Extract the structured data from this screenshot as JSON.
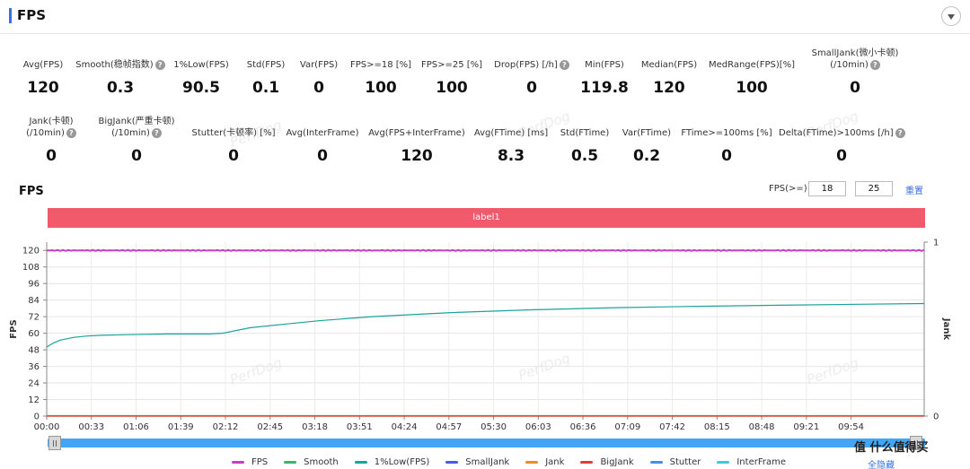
{
  "header": {
    "title": "FPS"
  },
  "metrics_row1": [
    {
      "label": "Avg(FPS)",
      "value": "120",
      "help": false
    },
    {
      "label": "Smooth(稳帧指数)",
      "value": "0.3",
      "help": true
    },
    {
      "label": "1%Low(FPS)",
      "value": "90.5",
      "help": false
    },
    {
      "label": "Std(FPS)",
      "value": "0.1",
      "help": false
    },
    {
      "label": "Var(FPS)",
      "value": "0",
      "help": false
    },
    {
      "label": "FPS>=18 [%]",
      "value": "100",
      "help": false
    },
    {
      "label": "FPS>=25 [%]",
      "value": "100",
      "help": false
    },
    {
      "label": "Drop(FPS) [/h]",
      "value": "0",
      "help": true
    },
    {
      "label": "Min(FPS)",
      "value": "119.8",
      "help": false
    },
    {
      "label": "Median(FPS)",
      "value": "120",
      "help": false
    },
    {
      "label": "MedRange(FPS)[%]",
      "value": "100",
      "help": false
    },
    {
      "label": "SmallJank(微小卡顿)",
      "label2": "(/10min)",
      "value": "0",
      "help": true
    }
  ],
  "metrics_row2": [
    {
      "label": "Jank(卡顿)",
      "label2": "(/10min)",
      "value": "0",
      "help": true
    },
    {
      "label": "BigJank(严重卡顿)",
      "label2": "(/10min)",
      "value": "0",
      "help": true
    },
    {
      "label": "Stutter(卡顿率) [%]",
      "value": "0",
      "help": false
    },
    {
      "label": "Avg(InterFrame)",
      "value": "0",
      "help": false
    },
    {
      "label": "Avg(FPS+InterFrame)",
      "value": "120",
      "help": false
    },
    {
      "label": "Avg(FTime) [ms]",
      "value": "8.3",
      "help": false
    },
    {
      "label": "Std(FTime)",
      "value": "0.5",
      "help": false
    },
    {
      "label": "Var(FTime)",
      "value": "0.2",
      "help": false
    },
    {
      "label": "FTime>=100ms [%]",
      "value": "0",
      "help": false
    },
    {
      "label": "Delta(FTime)>100ms [/h]",
      "value": "0",
      "help": true
    }
  ],
  "watermark_text": "PerfDog",
  "chart_section": {
    "title": "FPS",
    "filter_label": "FPS(>=)",
    "filter_value_1": "18",
    "filter_value_2": "25",
    "reset_label": "重置",
    "marker_label": "label1",
    "hide_all_label": "全隐藏",
    "brand_label": "值 什么值得买"
  },
  "chart_data": {
    "type": "line",
    "ylabel": "FPS",
    "y2label": "Jank",
    "ylim": [
      0,
      126
    ],
    "yticks": [
      0,
      12,
      24,
      36,
      48,
      60,
      72,
      84,
      96,
      108,
      120
    ],
    "y2lim": [
      0,
      1
    ],
    "y2ticks": [
      0,
      1
    ],
    "x_range_seconds": [
      0,
      648
    ],
    "xticks": [
      "00:00",
      "00:33",
      "01:06",
      "01:39",
      "02:12",
      "02:45",
      "03:18",
      "03:51",
      "04:24",
      "04:57",
      "05:30",
      "06:03",
      "06:36",
      "07:09",
      "07:42",
      "08:15",
      "08:48",
      "09:21",
      "09:54"
    ],
    "grid": true,
    "legend_position": "bottom",
    "series": [
      {
        "name": "FPS",
        "color": "#c33fc3",
        "x": [
          0,
          648
        ],
        "values": [
          120,
          120
        ]
      },
      {
        "name": "Smooth",
        "color": "#3cb371",
        "x": [
          0,
          648
        ],
        "values": [
          0.3,
          0.3
        ]
      },
      {
        "name": "1%Low(FPS)",
        "color": "#1aa39a",
        "x": [
          0,
          5,
          10,
          20,
          30,
          40,
          60,
          90,
          120,
          130,
          150,
          180,
          200,
          240,
          300,
          360,
          420,
          480,
          540,
          600,
          648
        ],
        "values": [
          50,
          53,
          55,
          57,
          58,
          58.5,
          59,
          59.5,
          59.5,
          60,
          64,
          67,
          69,
          72,
          75,
          77,
          78.5,
          79.5,
          80.3,
          81,
          81.5
        ]
      },
      {
        "name": "SmallJank",
        "color": "#4a5be0",
        "x": [],
        "values": []
      },
      {
        "name": "Jank",
        "color": "#f08c28",
        "x": [
          0,
          648
        ],
        "values": [
          0,
          0
        ]
      },
      {
        "name": "BigJank",
        "color": "#e03c3c",
        "x": [
          0,
          648
        ],
        "values": [
          0,
          0
        ]
      },
      {
        "name": "Stutter",
        "color": "#4a90e2",
        "x": [],
        "values": []
      },
      {
        "name": "InterFrame",
        "color": "#3fc8d8",
        "x": [],
        "values": []
      }
    ]
  }
}
